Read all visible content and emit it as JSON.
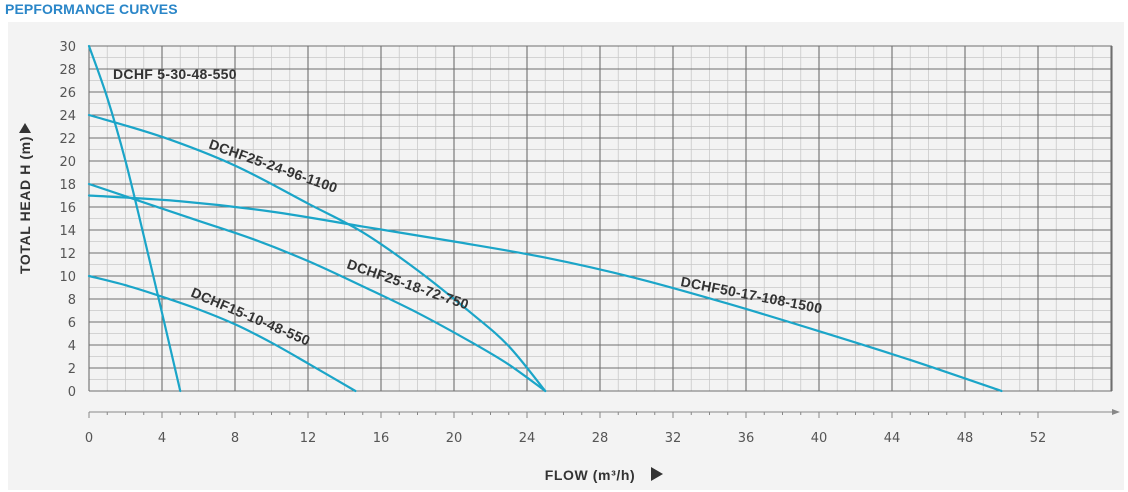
{
  "page": {
    "title": "PEPFORMANCE CURVES"
  },
  "chart_data": {
    "type": "line",
    "xlabel": "FLOW (m³/h)",
    "ylabel": "TOTAL HEAD H (m)",
    "xlim": [
      0,
      52
    ],
    "ylim": [
      0,
      30
    ],
    "x_ticks": [
      0,
      4,
      8,
      12,
      16,
      20,
      24,
      28,
      32,
      36,
      40,
      44,
      48,
      52
    ],
    "y_ticks": [
      0,
      2,
      4,
      6,
      8,
      10,
      12,
      14,
      16,
      18,
      20,
      22,
      24,
      26,
      28,
      30
    ],
    "x_minor_step": 1,
    "y_minor_step": 1,
    "grid": true,
    "line_color": "#1ba5c8",
    "series": [
      {
        "name": "DCHF 5-30-48-550",
        "x": [
          0,
          1,
          2,
          3,
          4,
          5
        ],
        "y": [
          30,
          25.5,
          20,
          13.5,
          6.8,
          0
        ]
      },
      {
        "name": "DCHF25-24-96-1100",
        "x": [
          0,
          4,
          8,
          12,
          15,
          18,
          21,
          23,
          25
        ],
        "y": [
          24,
          22.1,
          19.6,
          16.3,
          13.8,
          10.5,
          6.7,
          3.9,
          0
        ]
      },
      {
        "name": "DCHF25-18-72-750",
        "x": [
          0,
          3,
          6,
          9,
          12,
          15,
          18,
          21,
          23,
          25
        ],
        "y": [
          18,
          16.4,
          14.8,
          13.2,
          11.3,
          9.1,
          6.8,
          4.2,
          2.3,
          0
        ]
      },
      {
        "name": "DCHF50-17-108-1500",
        "x": [
          0,
          5,
          10,
          15,
          20,
          25,
          30,
          35,
          40,
          45,
          50
        ],
        "y": [
          17,
          16.5,
          15.6,
          14.3,
          13.0,
          11.6,
          9.8,
          7.6,
          5.2,
          2.7,
          0
        ]
      },
      {
        "name": "DCHF15-10-48-550",
        "x": [
          0,
          2,
          4,
          6,
          8,
          10,
          12,
          14.6
        ],
        "y": [
          10,
          9.2,
          8.2,
          7.1,
          5.8,
          4.2,
          2.4,
          0
        ]
      }
    ]
  }
}
